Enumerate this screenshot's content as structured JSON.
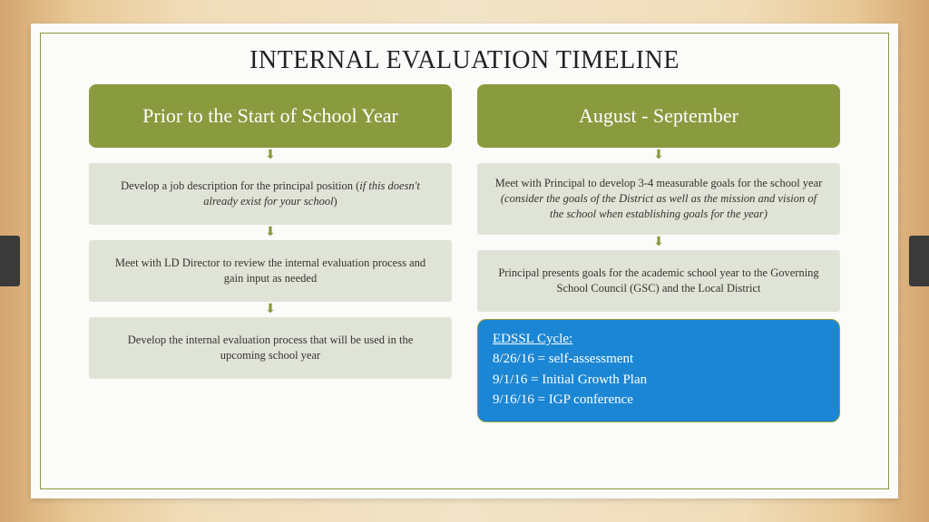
{
  "title": "INTERNAL EVALUATION TIMELINE",
  "colors": {
    "olive": "#8a9a3e",
    "stepBg": "#e0e4d6",
    "cycleBg": "#1b86d4",
    "frameBg": "#fbfbf9"
  },
  "columns": [
    {
      "header": "Prior to the Start of School Year",
      "steps": [
        {
          "plain": "Develop a job description for the principal position (",
          "italic": "if this doesn't already exist for your school",
          "suffix": ")"
        },
        {
          "plain": "Meet with LD Director to review the internal evaluation process and gain input as needed"
        },
        {
          "plain": "Develop the internal evaluation process that will be used in the upcoming school year"
        }
      ]
    },
    {
      "header": "August - September",
      "steps": [
        {
          "plain": "Meet with Principal to develop 3-4 measurable goals for the school year ",
          "italic": "(consider the goals of the District as well as the mission and vision of the school when establishing goals for the year)"
        },
        {
          "plain": "Principal presents goals for the academic school year to the Governing School Council (GSC) and the Local District"
        }
      ]
    }
  ],
  "cycle": {
    "heading": "EDSSL Cycle:",
    "lines": [
      "8/26/16 = self-assessment",
      "9/1/16 = Initial Growth Plan",
      "9/16/16 = IGP conference"
    ]
  }
}
